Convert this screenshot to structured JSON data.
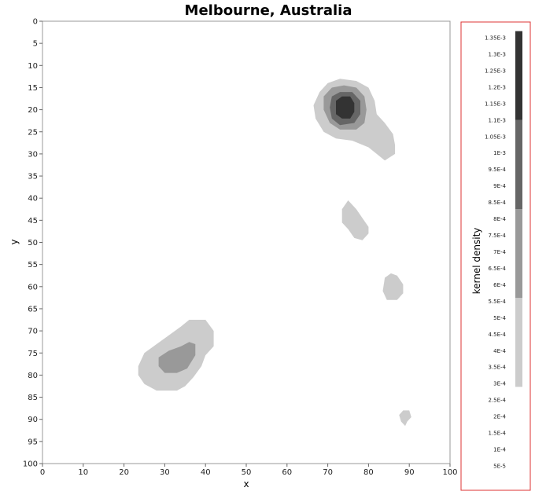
{
  "chart_data": {
    "type": "heatmap",
    "title": "Melbourne, Australia",
    "xlabel": "x",
    "ylabel": "y",
    "xlim": [
      0,
      100
    ],
    "ylim": [
      0,
      100
    ],
    "y_inverted": true,
    "x_ticks": [
      0,
      10,
      20,
      30,
      40,
      50,
      60,
      70,
      80,
      90,
      100
    ],
    "y_ticks": [
      0,
      5,
      10,
      15,
      20,
      25,
      30,
      35,
      40,
      45,
      50,
      55,
      60,
      65,
      70,
      75,
      80,
      85,
      90,
      95,
      100
    ],
    "grid": false,
    "colorbar": {
      "label": "kernel density",
      "tick_labels": [
        "1.35E-3",
        "1.3E-3",
        "1.25E-3",
        "1.2E-3",
        "1.15E-3",
        "1.1E-3",
        "1.05E-3",
        "1E-3",
        "9.5E-4",
        "9E-4",
        "8.5E-4",
        "8E-4",
        "7.5E-4",
        "7E-4",
        "6.5E-4",
        "6E-4",
        "5.5E-4",
        "5E-4",
        "4.5E-4",
        "4E-4",
        "3.5E-4",
        "3E-4",
        "2.5E-4",
        "2E-4",
        "1.5E-4",
        "1E-4",
        "5E-5"
      ],
      "tick_values": [
        0.00135,
        0.0013,
        0.00125,
        0.0012,
        0.00115,
        0.0011,
        0.00105,
        0.001,
        0.00095,
        0.0009,
        0.00085,
        0.0008,
        0.00075,
        0.0007,
        0.00065,
        0.0006,
        0.00055,
        0.0005,
        0.00045,
        0.0004,
        0.00035,
        0.0003,
        0.00025,
        0.0002,
        0.00015,
        0.0001,
        5e-05
      ],
      "bands": [
        {
          "from": 0.00029,
          "to": 0.00056,
          "color": "#cccccc"
        },
        {
          "from": 0.00056,
          "to": 0.00083,
          "color": "#999999"
        },
        {
          "from": 0.00083,
          "to": 0.0011,
          "color": "#666666"
        },
        {
          "from": 0.0011,
          "to": 0.00137,
          "color": "#333333"
        }
      ]
    },
    "regions": [
      {
        "level": 1,
        "color": "#cccccc",
        "points": [
          [
            68,
            16
          ],
          [
            70,
            14
          ],
          [
            73,
            13
          ],
          [
            77,
            13.5
          ],
          [
            80,
            15
          ],
          [
            81.5,
            18
          ],
          [
            82,
            21
          ],
          [
            84,
            23
          ],
          [
            86,
            25.5
          ],
          [
            86.5,
            28
          ],
          [
            86.5,
            30
          ],
          [
            84,
            31.5
          ],
          [
            82,
            30
          ],
          [
            80,
            28.5
          ],
          [
            76,
            27
          ],
          [
            72,
            26.5
          ],
          [
            69,
            25
          ],
          [
            67,
            22
          ],
          [
            66.5,
            19
          ]
        ]
      },
      {
        "level": 2,
        "color": "#999999",
        "points": [
          [
            69,
            17
          ],
          [
            71,
            15
          ],
          [
            74,
            14.5
          ],
          [
            77,
            15
          ],
          [
            79,
            17
          ],
          [
            79.5,
            20
          ],
          [
            79,
            23
          ],
          [
            77,
            24.5
          ],
          [
            73,
            24.5
          ],
          [
            70.5,
            23
          ],
          [
            69,
            20
          ]
        ]
      },
      {
        "level": 3,
        "color": "#666666",
        "points": [
          [
            71,
            17
          ],
          [
            73,
            16
          ],
          [
            76,
            16
          ],
          [
            78,
            18
          ],
          [
            78,
            21
          ],
          [
            76.5,
            23
          ],
          [
            73,
            23.5
          ],
          [
            71,
            22
          ],
          [
            70.5,
            19.5
          ]
        ]
      },
      {
        "level": 4,
        "color": "#333333",
        "points": [
          [
            72,
            18
          ],
          [
            73.5,
            17
          ],
          [
            75.5,
            17
          ],
          [
            76.5,
            18.5
          ],
          [
            76.5,
            20.5
          ],
          [
            75.5,
            22
          ],
          [
            73.5,
            22
          ],
          [
            72,
            21
          ]
        ]
      },
      {
        "level": 1,
        "color": "#cccccc",
        "points": [
          [
            73.5,
            42.5
          ],
          [
            75,
            40.5
          ],
          [
            77,
            42.5
          ],
          [
            78.5,
            44.5
          ],
          [
            80,
            46.5
          ],
          [
            80,
            48
          ],
          [
            78.5,
            49.5
          ],
          [
            76.5,
            49
          ],
          [
            75,
            47
          ],
          [
            73.5,
            45.5
          ]
        ]
      },
      {
        "level": 1,
        "color": "#cccccc",
        "points": [
          [
            84,
            58
          ],
          [
            85.5,
            57
          ],
          [
            87,
            57.5
          ],
          [
            88.5,
            59.5
          ],
          [
            88.5,
            61.5
          ],
          [
            87,
            63
          ],
          [
            84.5,
            63
          ],
          [
            83.5,
            61
          ]
        ]
      },
      {
        "level": 1,
        "color": "#cccccc",
        "points": [
          [
            23.5,
            78
          ],
          [
            25,
            75
          ],
          [
            28,
            73
          ],
          [
            31,
            71
          ],
          [
            34,
            69
          ],
          [
            36,
            67.5
          ],
          [
            40,
            67.5
          ],
          [
            42,
            70
          ],
          [
            42,
            73.5
          ],
          [
            40,
            75.5
          ],
          [
            39,
            78
          ],
          [
            37,
            80.5
          ],
          [
            35,
            82.5
          ],
          [
            33,
            83.5
          ],
          [
            28,
            83.5
          ],
          [
            25,
            82
          ],
          [
            23.5,
            80
          ]
        ]
      },
      {
        "level": 2,
        "color": "#999999",
        "points": [
          [
            28.5,
            76
          ],
          [
            31,
            74.5
          ],
          [
            34,
            73.5
          ],
          [
            36,
            72.5
          ],
          [
            37.5,
            73
          ],
          [
            37.5,
            75.5
          ],
          [
            35.5,
            78.5
          ],
          [
            33,
            79.5
          ],
          [
            30,
            79.5
          ],
          [
            28.5,
            78
          ]
        ]
      },
      {
        "level": 1,
        "color": "#cccccc",
        "points": [
          [
            87.5,
            89
          ],
          [
            88.5,
            88
          ],
          [
            90,
            88
          ],
          [
            90.5,
            89.5
          ],
          [
            89.5,
            90.5
          ],
          [
            89,
            91.5
          ],
          [
            88,
            90.5
          ]
        ]
      }
    ]
  }
}
